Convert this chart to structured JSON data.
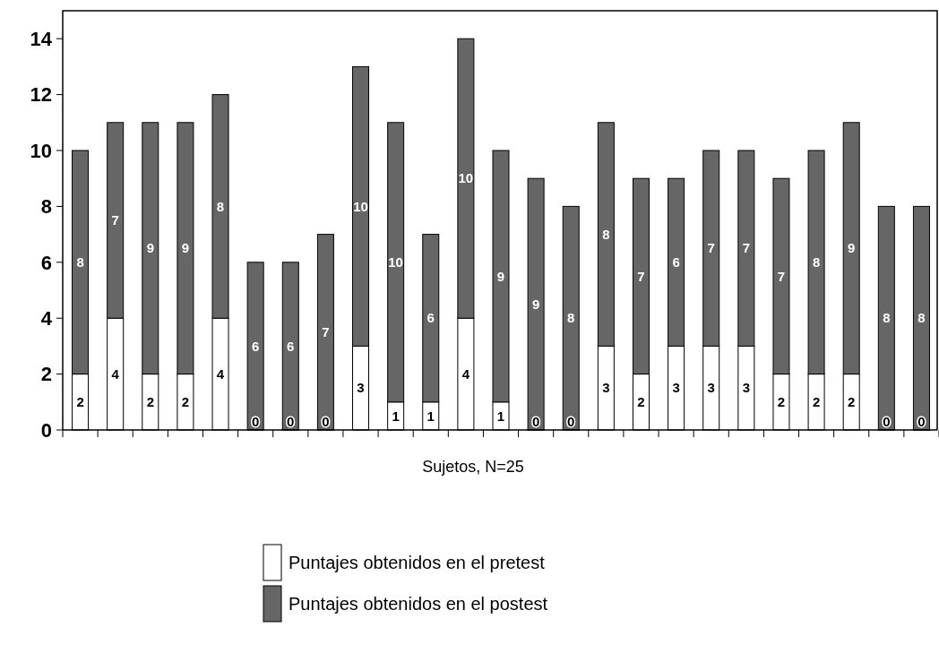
{
  "chart_data": {
    "type": "bar",
    "stacked": true,
    "xlabel": "Sujetos, N=25",
    "categories": [
      null,
      null,
      null,
      null,
      null,
      null,
      null,
      null,
      null,
      null,
      null,
      null,
      null,
      null,
      null,
      null,
      null,
      null,
      null,
      null,
      null,
      null,
      null,
      null,
      null
    ],
    "series": [
      {
        "name": "Puntajes obtenidos en el pretest",
        "color": "#ffffff",
        "values": [
          2,
          4,
          2,
          2,
          4,
          0,
          0,
          0,
          3,
          1,
          1,
          4,
          1,
          0,
          0,
          3,
          2,
          3,
          3,
          3,
          2,
          2,
          2,
          0,
          0
        ]
      },
      {
        "name": "Puntajes obtenidos en el postest",
        "color": "#666666",
        "values": [
          8,
          7,
          9,
          9,
          8,
          6,
          6,
          7,
          10,
          10,
          6,
          10,
          9,
          9,
          8,
          8,
          7,
          6,
          7,
          7,
          7,
          8,
          9,
          8,
          8
        ]
      }
    ],
    "ylim": [
      0,
      15
    ],
    "yticks": [
      0,
      2,
      4,
      6,
      8,
      10,
      12,
      14
    ],
    "data_labels": true,
    "legend": "bottom",
    "grid": false
  }
}
